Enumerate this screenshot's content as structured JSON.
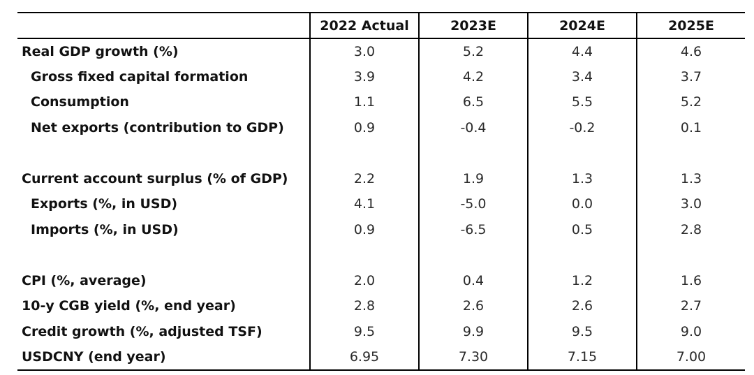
{
  "table": {
    "header": [
      "",
      "2022 Actual",
      "2023E",
      "2024E",
      "2025E"
    ],
    "sections": [
      {
        "rows": [
          {
            "label": "Real GDP growth (%)",
            "indent": false,
            "values": [
              "3.0",
              "5.2",
              "4.4",
              "4.6"
            ]
          },
          {
            "label": "Gross fixed capital formation",
            "indent": true,
            "values": [
              "3.9",
              "4.2",
              "3.4",
              "3.7"
            ]
          },
          {
            "label": "Consumption",
            "indent": true,
            "values": [
              "1.1",
              "6.5",
              "5.5",
              "5.2"
            ]
          },
          {
            "label": "Net exports (contribution to GDP)",
            "indent": true,
            "values": [
              "0.9",
              "-0.4",
              "-0.2",
              "0.1"
            ]
          }
        ]
      },
      {
        "rows": [
          {
            "label": "Current account surplus (% of GDP)",
            "indent": false,
            "values": [
              "2.2",
              "1.9",
              "1.3",
              "1.3"
            ]
          },
          {
            "label": "Exports (%, in USD)",
            "indent": true,
            "values": [
              "4.1",
              "-5.0",
              "0.0",
              "3.0"
            ]
          },
          {
            "label": "Imports (%, in USD)",
            "indent": true,
            "values": [
              "0.9",
              "-6.5",
              "0.5",
              "2.8"
            ]
          }
        ]
      },
      {
        "rows": [
          {
            "label": "CPI (%, average)",
            "indent": false,
            "values": [
              "2.0",
              "0.4",
              "1.2",
              "1.6"
            ]
          },
          {
            "label": "10-y CGB yield (%, end year)",
            "indent": false,
            "values": [
              "2.8",
              "2.6",
              "2.6",
              "2.7"
            ]
          },
          {
            "label": "Credit growth (%, adjusted TSF)",
            "indent": false,
            "values": [
              "9.5",
              "9.9",
              "9.5",
              "9.0"
            ]
          },
          {
            "label": "USDCNY (end year)",
            "indent": false,
            "values": [
              "6.95",
              "7.30",
              "7.15",
              "7.00"
            ]
          }
        ]
      }
    ]
  }
}
